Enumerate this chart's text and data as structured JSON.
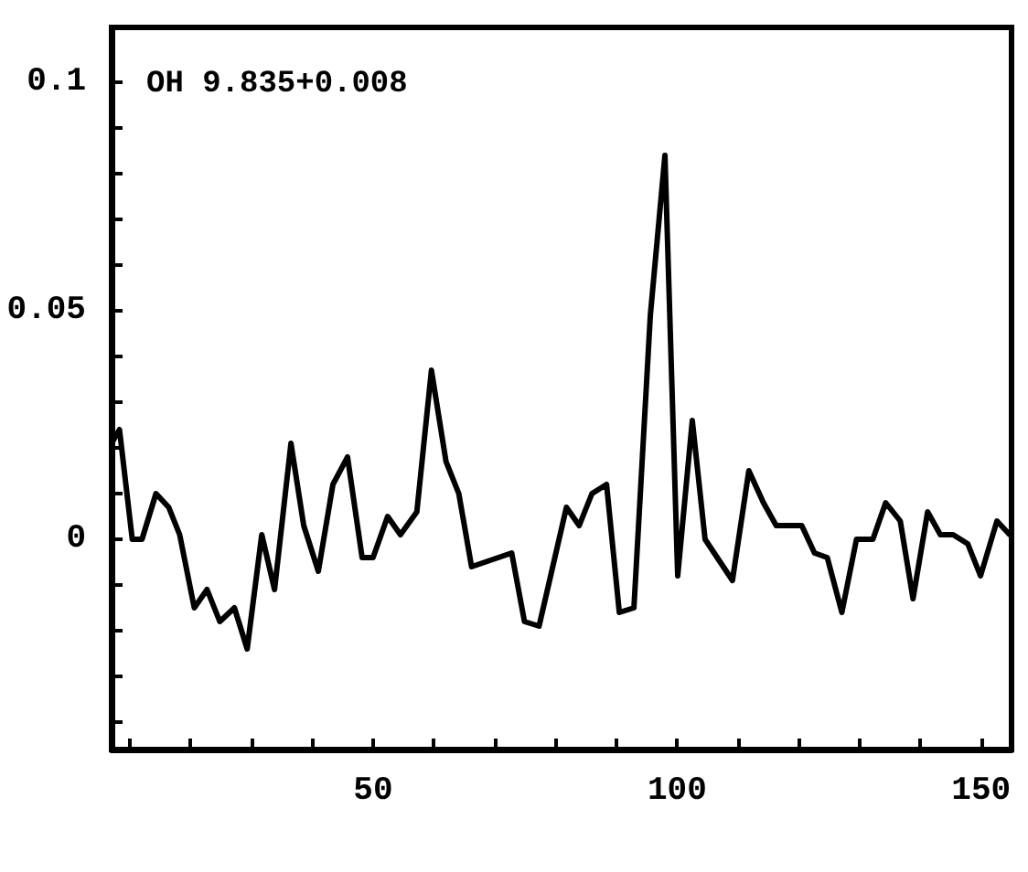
{
  "chart_data": {
    "type": "line",
    "annotations": [
      "OH 9.835+0.008"
    ],
    "x": [
      7,
      8.3,
      10.4,
      12,
      14.3,
      16.4,
      18.2,
      20.6,
      22.7,
      24.8,
      27.2,
      29.3,
      31.7,
      33.8,
      36.5,
      38.6,
      41,
      43.4,
      45.8,
      48.2,
      50,
      52.4,
      54.5,
      57.2,
      59.6,
      62,
      64.1,
      66.2,
      72.8,
      74.9,
      77.3,
      81.8,
      83.9,
      86,
      88.4,
      90.5,
      92.9,
      95.6,
      98,
      100.1,
      102.5,
      104.6,
      109.1,
      111.8,
      114.2,
      116.3,
      120.5,
      122.6,
      124.7,
      127.1,
      129.5,
      132.2,
      134.3,
      136.7,
      138.8,
      141.2,
      143.3,
      145.4,
      147.8,
      149.9,
      152.6,
      154.7
    ],
    "series": [
      {
        "color": "#000000",
        "values": [
          0.021,
          0.024,
          0,
          0,
          0.01,
          0.007,
          0.001,
          -0.015,
          -0.011,
          -0.018,
          -0.015,
          -0.024,
          0.001,
          -0.011,
          0.021,
          0.003,
          -0.007,
          0.012,
          0.018,
          -0.004,
          -0.004,
          0.005,
          0.001,
          0.006,
          0.037,
          0.017,
          0.01,
          -0.006,
          -0.003,
          -0.018,
          -0.019,
          0.007,
          0.003,
          0.01,
          0.012,
          -0.016,
          -0.015,
          0.049,
          0.084,
          -0.008,
          0.026,
          0.0,
          -0.009,
          0.015,
          0.008,
          0.003,
          0.003,
          -0.003,
          -0.004,
          -0.016,
          0,
          0,
          0.008,
          0.004,
          -0.013,
          0.006,
          0.001,
          0.001,
          -0.001,
          -0.008,
          0.004,
          0.001
        ]
      }
    ],
    "xlim": [
      7,
      155
    ],
    "ylim": [
      -0.046,
      0.112
    ],
    "xticks": [
      {
        "value": 10,
        "label": null
      },
      {
        "value": 20,
        "label": null
      },
      {
        "value": 30,
        "label": null
      },
      {
        "value": 40,
        "label": null
      },
      50,
      {
        "value": 60,
        "label": null
      },
      {
        "value": 70,
        "label": null
      },
      {
        "value": 80,
        "label": null
      },
      {
        "value": 90,
        "label": null
      },
      100,
      {
        "value": 110,
        "label": null
      },
      {
        "value": 120,
        "label": null
      },
      {
        "value": 130,
        "label": null
      },
      {
        "value": 140,
        "label": null
      },
      150
    ],
    "yticks": [
      {
        "value": -0.04,
        "label": null
      },
      {
        "value": -0.03,
        "label": null
      },
      {
        "value": -0.02,
        "label": null
      },
      {
        "value": -0.01,
        "label": null
      },
      0,
      {
        "value": 0.01,
        "label": null
      },
      {
        "value": 0.02,
        "label": null
      },
      {
        "value": 0.03,
        "label": null
      },
      {
        "value": 0.04,
        "label": null
      },
      0.05,
      {
        "value": 0.06,
        "label": null
      },
      {
        "value": 0.07,
        "label": null
      },
      {
        "value": 0.08,
        "label": null
      },
      {
        "value": 0.09,
        "label": null
      },
      0.1
    ],
    "grid": false,
    "marker": "none",
    "line_style": "solid"
  }
}
